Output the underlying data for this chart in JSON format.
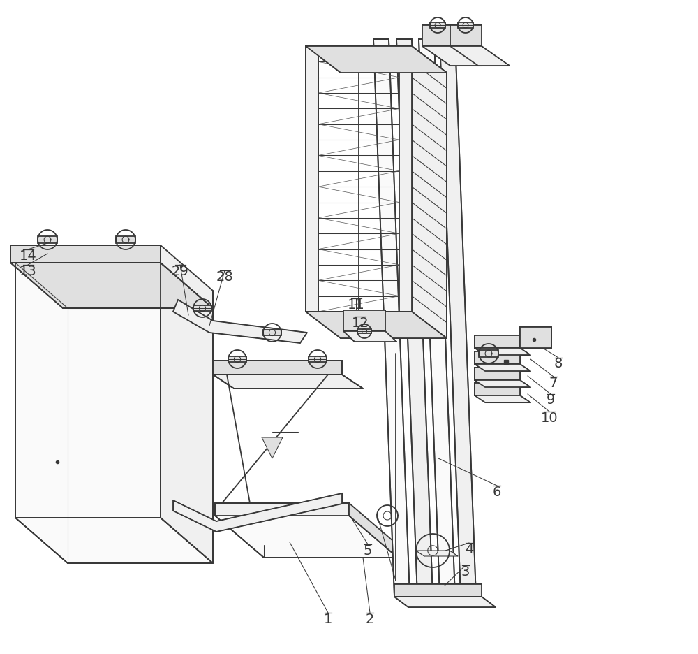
{
  "bg": "#ffffff",
  "lc": "#383838",
  "lc2": "#555555",
  "lw": 1.3,
  "tlw": 0.75,
  "flw": 0.5,
  "fs": 14,
  "fc_light": "#f0f0f0",
  "fc_mid": "#e0e0e0",
  "fc_dark": "#cccccc",
  "fc_white": "#fafafa"
}
